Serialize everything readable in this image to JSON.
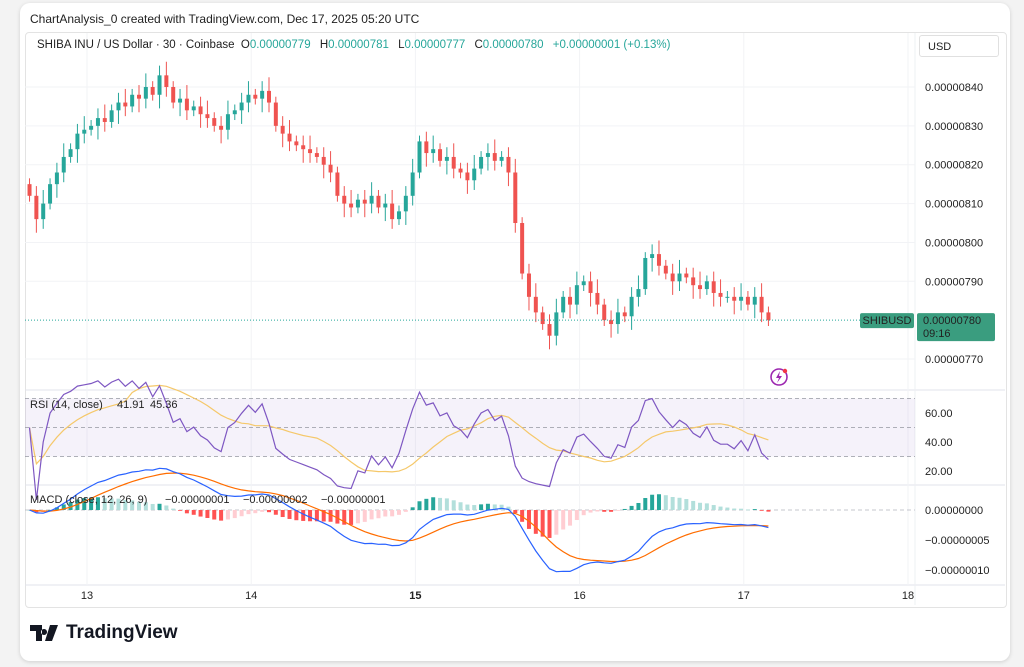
{
  "credit": "ChartAnalysis_0 created with TradingView.com, Dec 17, 2025 05:20 UTC",
  "legend": {
    "symbol": "SHIBA INU / US Dollar · 30 · Coinbase",
    "o_label": "O",
    "o": "0.00000779",
    "h_label": "H",
    "h": "0.00000781",
    "l_label": "L",
    "l": "0.00000777",
    "c_label": "C",
    "c": "0.00000780",
    "change": "+0.00000001 (+0.13%)"
  },
  "currency_button": "USD",
  "price_tag": {
    "symbol": "SHIBUSD",
    "price": "0.00000780",
    "countdown": "09:16"
  },
  "rsi": {
    "label": "RSI (14, close)",
    "value": "41.91",
    "ma_value": "45.36"
  },
  "macd": {
    "label": "MACD (close, 12, 26, 9)",
    "hist": "−0.00000001",
    "macd": "−0.00000002",
    "signal": "−0.00000001"
  },
  "logo": "TradingView",
  "colors": {
    "up": "#26a69a",
    "down": "#ef5350",
    "rsi": "#7e57c2",
    "rsi_ma": "#f5c86a",
    "macd": "#2962ff",
    "signal": "#ff6d00"
  },
  "chart_data": {
    "type": "candlestick",
    "title": "SHIBA INU / US Dollar · 30 · Coinbase",
    "price_unit": "1e-8 USD",
    "x_start_day": 12.65,
    "x_step_day": 0.041667,
    "closes": [
      812,
      806,
      810,
      815,
      818,
      822,
      824,
      828,
      829,
      830,
      832,
      831,
      834,
      836,
      835,
      838,
      837,
      840,
      838,
      843,
      840,
      836,
      837,
      834,
      835,
      833,
      832,
      830,
      829,
      833,
      834,
      836,
      838,
      837,
      839,
      836,
      830,
      828,
      826,
      825,
      824,
      823,
      822,
      820,
      818,
      812,
      810,
      809,
      811,
      810,
      812,
      809,
      810,
      806,
      808,
      812,
      818,
      826,
      823,
      824,
      821,
      822,
      819,
      818,
      816,
      819,
      822,
      823,
      821,
      822,
      818,
      805,
      792,
      786,
      782,
      779,
      776,
      782,
      786,
      784,
      789,
      790,
      787,
      784,
      780,
      779,
      782,
      781,
      786,
      788,
      796,
      797,
      794,
      792,
      790,
      792,
      791,
      789,
      788,
      790,
      787,
      786,
      786,
      785,
      786,
      784,
      786,
      782,
      780
    ],
    "x_ticks": [
      "13",
      "14",
      "15",
      "16",
      "17",
      "18"
    ],
    "y_ticks": [
      "0.00000840",
      "0.00000830",
      "0.00000820",
      "0.00000810",
      "0.00000800",
      "0.00000790",
      "0.00000770"
    ],
    "y_tick_values": [
      840,
      830,
      820,
      810,
      800,
      790,
      770
    ],
    "ylim": [
      764,
      852
    ],
    "rsi_ticks": [
      "60.00",
      "40.00",
      "20.00"
    ],
    "rsi_tick_values": [
      60,
      40,
      20
    ],
    "macd_ticks": [
      "0.00000000",
      "−0.00000005",
      "−0.00000010"
    ],
    "macd_tick_values": [
      0,
      -5,
      -10
    ]
  }
}
